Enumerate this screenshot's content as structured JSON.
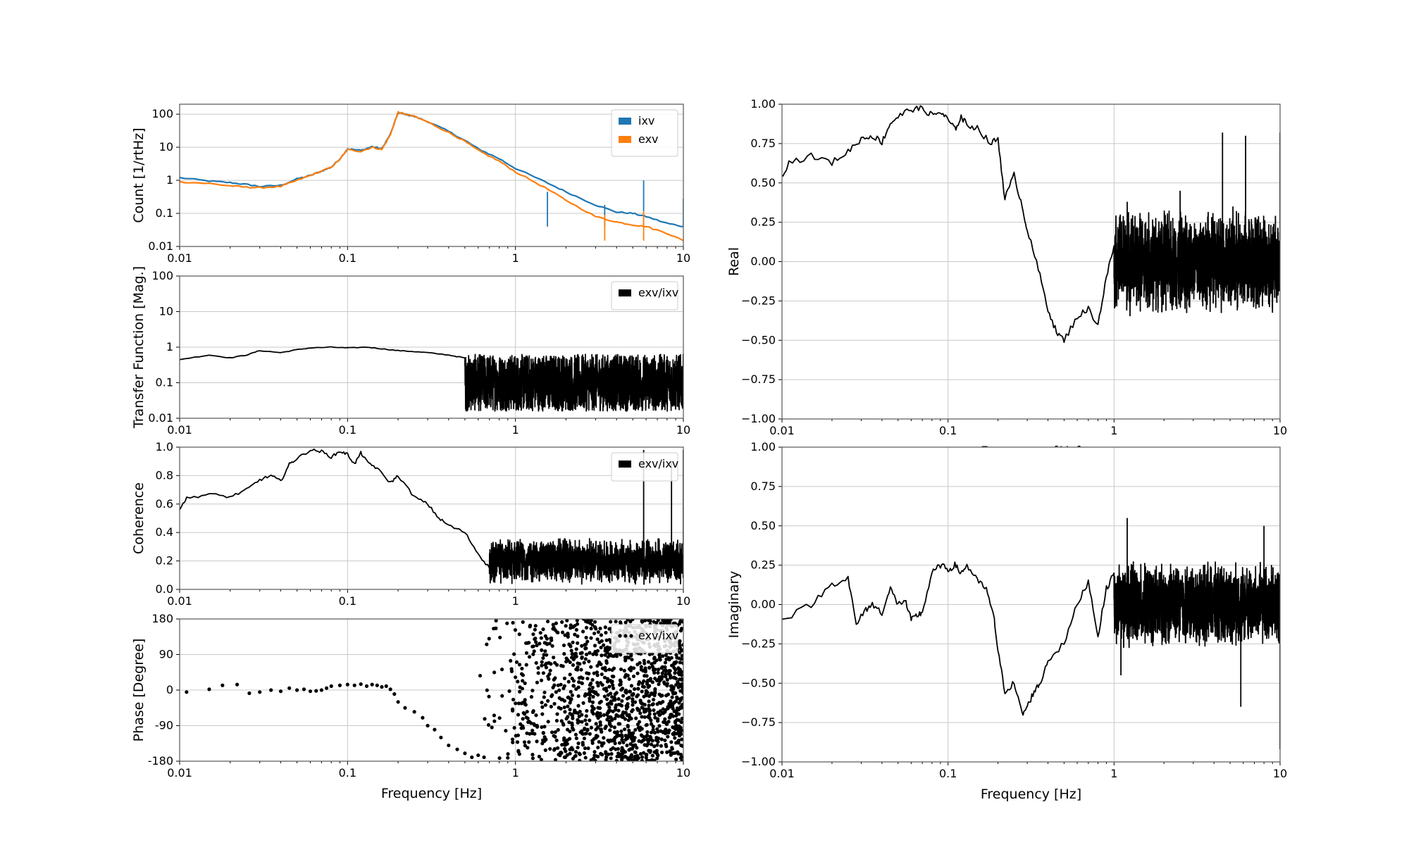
{
  "chart_data": [
    {
      "id": "asd",
      "type": "line",
      "ylabel": "Count [1/rtHz]",
      "xlabel": "",
      "xscale": "log",
      "yscale": "log",
      "xlim": [
        0.01,
        10
      ],
      "ylim": [
        0.01,
        200
      ],
      "xticks": [
        "0.01",
        "0.1",
        "1",
        "10"
      ],
      "yticks": [
        "0.01",
        "0.1",
        "1",
        "10",
        "100"
      ],
      "grid": true,
      "legend_position": "top-right",
      "series": [
        {
          "name": "ixv",
          "color": "#1f77b4",
          "x": [
            0.01,
            0.015,
            0.02,
            0.025,
            0.03,
            0.04,
            0.05,
            0.06,
            0.07,
            0.08,
            0.09,
            0.1,
            0.12,
            0.14,
            0.16,
            0.18,
            0.2,
            0.22,
            0.25,
            0.3,
            0.4,
            0.5,
            0.6,
            0.8,
            1.0,
            1.5,
            2.0,
            3.0,
            4.0,
            5.0,
            6.0,
            8.0,
            10.0
          ],
          "y": [
            1.2,
            0.95,
            0.85,
            0.75,
            0.65,
            0.7,
            1.1,
            1.4,
            1.9,
            2.5,
            4.5,
            9.0,
            8.0,
            10.5,
            9.0,
            25,
            110,
            100,
            85,
            60,
            30,
            16,
            9,
            4.5,
            2.3,
            0.9,
            0.45,
            0.18,
            0.11,
            0.1,
            0.08,
            0.05,
            0.04
          ],
          "spikes": [
            {
              "x": 1.55,
              "y": 0.45
            },
            {
              "x": 3.4,
              "y": 0.18
            },
            {
              "x": 5.8,
              "y": 1.0
            },
            {
              "x": 10.0,
              "y": 0.28
            }
          ]
        },
        {
          "name": "exv",
          "color": "#ff7f0e",
          "x": [
            0.01,
            0.015,
            0.02,
            0.025,
            0.03,
            0.04,
            0.05,
            0.06,
            0.07,
            0.08,
            0.09,
            0.1,
            0.12,
            0.14,
            0.16,
            0.18,
            0.2,
            0.22,
            0.25,
            0.3,
            0.4,
            0.5,
            0.6,
            0.8,
            1.0,
            1.5,
            2.0,
            3.0,
            4.0,
            5.0,
            6.0,
            8.0,
            10.0
          ],
          "y": [
            0.9,
            0.8,
            0.68,
            0.62,
            0.6,
            0.65,
            1.0,
            1.4,
            1.9,
            2.5,
            4.3,
            8.5,
            7.5,
            10.0,
            8.5,
            24,
            115,
            100,
            85,
            58,
            28,
            15,
            8,
            3.8,
            1.8,
            0.6,
            0.25,
            0.08,
            0.055,
            0.045,
            0.04,
            0.025,
            0.015
          ],
          "spikes": [
            {
              "x": 5.8,
              "y": 0.12
            },
            {
              "x": 3.4,
              "y": 0.09
            }
          ]
        }
      ]
    },
    {
      "id": "tf_mag",
      "type": "line",
      "ylabel": "Transfer Function [Mag.]",
      "xlabel": "",
      "xscale": "log",
      "yscale": "log",
      "xlim": [
        0.01,
        10
      ],
      "ylim": [
        0.01,
        100
      ],
      "xticks": [
        "0.01",
        "0.1",
        "1",
        "10"
      ],
      "yticks": [
        "0.01",
        "0.1",
        "1",
        "10",
        "100"
      ],
      "grid": true,
      "legend_position": "top-right",
      "series": [
        {
          "name": "exv/ixv",
          "color": "#000000",
          "x": [
            0.01,
            0.015,
            0.02,
            0.025,
            0.03,
            0.04,
            0.05,
            0.06,
            0.08,
            0.1,
            0.13,
            0.16,
            0.2,
            0.25,
            0.3,
            0.4,
            0.5
          ],
          "y": [
            0.45,
            0.6,
            0.5,
            0.6,
            0.8,
            0.7,
            0.85,
            0.95,
            1.0,
            0.95,
            1.0,
            0.9,
            0.8,
            0.75,
            0.7,
            0.6,
            0.5
          ],
          "noise": {
            "x_start": 0.5,
            "x_end": 10,
            "median": 0.1,
            "spread_decades": 0.8
          }
        }
      ]
    },
    {
      "id": "coherence",
      "type": "line",
      "ylabel": "Coherence",
      "xlabel": "",
      "xscale": "log",
      "yscale": "linear",
      "xlim": [
        0.01,
        10
      ],
      "ylim": [
        0.0,
        1.0
      ],
      "xticks": [
        "0.01",
        "0.1",
        "1",
        "10"
      ],
      "yticks": [
        "0.0",
        "0.2",
        "0.4",
        "0.6",
        "0.8",
        "1.0"
      ],
      "grid": true,
      "legend_position": "top-right",
      "series": [
        {
          "name": "exv/ixv",
          "color": "#000000",
          "x": [
            0.01,
            0.011,
            0.015,
            0.02,
            0.025,
            0.03,
            0.035,
            0.04,
            0.045,
            0.05,
            0.06,
            0.07,
            0.08,
            0.09,
            0.1,
            0.11,
            0.12,
            0.13,
            0.15,
            0.18,
            0.2,
            0.25,
            0.3,
            0.35,
            0.4,
            0.5,
            0.6,
            0.7
          ],
          "y": [
            0.57,
            0.64,
            0.67,
            0.65,
            0.7,
            0.77,
            0.8,
            0.76,
            0.88,
            0.92,
            0.98,
            0.97,
            0.93,
            0.97,
            0.95,
            0.88,
            0.96,
            0.9,
            0.85,
            0.75,
            0.8,
            0.65,
            0.6,
            0.5,
            0.45,
            0.4,
            0.25,
            0.15
          ],
          "noise": {
            "x_start": 0.7,
            "x_end": 10,
            "center": 0.2,
            "spread": 0.12
          },
          "spikes": [
            {
              "x": 5.8,
              "y": 0.98
            },
            {
              "x": 8.5,
              "y": 0.9
            },
            {
              "x": 10.0,
              "y": 0.98
            }
          ]
        }
      ]
    },
    {
      "id": "phase",
      "type": "scatter",
      "ylabel": "Phase [Degree]",
      "xlabel": "Frequency [Hz]",
      "xscale": "log",
      "yscale": "linear",
      "xlim": [
        0.01,
        10
      ],
      "ylim": [
        -180,
        180
      ],
      "xticks": [
        "0.01",
        "0.1",
        "1",
        "10"
      ],
      "yticks": [
        "-180",
        "-90",
        "0",
        "90",
        "180"
      ],
      "grid": true,
      "legend_position": "top-right",
      "series": [
        {
          "name": "exv/ixv",
          "color": "#000000",
          "x": [
            0.011,
            0.015,
            0.018,
            0.022,
            0.026,
            0.03,
            0.035,
            0.04,
            0.045,
            0.05,
            0.055,
            0.06,
            0.065,
            0.07,
            0.075,
            0.08,
            0.09,
            0.1,
            0.11,
            0.12,
            0.13,
            0.14,
            0.15,
            0.16,
            0.17,
            0.18,
            0.19,
            0.2,
            0.22,
            0.25,
            0.28,
            0.3,
            0.33,
            0.36,
            0.4,
            0.45,
            0.5,
            0.55,
            0.6,
            0.65
          ],
          "y": [
            -5,
            2,
            12,
            14,
            -8,
            -5,
            0,
            -3,
            5,
            0,
            2,
            -3,
            -2,
            0,
            5,
            10,
            12,
            14,
            12,
            15,
            10,
            14,
            12,
            8,
            10,
            2,
            -10,
            -30,
            -45,
            -55,
            -70,
            -90,
            -100,
            -120,
            -140,
            -150,
            -160,
            -170,
            -165,
            -170
          ],
          "scatter_region": {
            "x_start": 0.6,
            "x_end": 10,
            "y_min": -180,
            "y_max": 180
          }
        }
      ]
    },
    {
      "id": "real",
      "type": "line",
      "ylabel": "Real",
      "xlabel": "Frequency [Hz]",
      "xscale": "log",
      "yscale": "linear",
      "xlim": [
        0.01,
        10
      ],
      "ylim": [
        -1.0,
        1.0
      ],
      "xticks": [
        "0.01",
        "0.1",
        "1",
        "10"
      ],
      "yticks": [
        "−1.00",
        "−0.75",
        "−0.50",
        "−0.25",
        "0.00",
        "0.25",
        "0.50",
        "0.75",
        "1.00"
      ],
      "grid": true,
      "series": [
        {
          "name": "",
          "color": "#000000",
          "x": [
            0.01,
            0.011,
            0.015,
            0.02,
            0.025,
            0.03,
            0.035,
            0.04,
            0.045,
            0.05,
            0.06,
            0.07,
            0.08,
            0.09,
            0.1,
            0.11,
            0.12,
            0.13,
            0.15,
            0.18,
            0.2,
            0.22,
            0.25,
            0.28,
            0.3,
            0.35,
            0.4,
            0.45,
            0.5,
            0.6,
            0.7,
            0.8,
            0.9,
            1.0
          ],
          "y": [
            0.55,
            0.63,
            0.67,
            0.63,
            0.7,
            0.78,
            0.8,
            0.76,
            0.88,
            0.92,
            0.97,
            0.97,
            0.93,
            0.95,
            0.9,
            0.84,
            0.92,
            0.87,
            0.85,
            0.75,
            0.78,
            0.4,
            0.55,
            0.35,
            0.2,
            -0.05,
            -0.3,
            -0.45,
            -0.5,
            -0.35,
            -0.3,
            -0.4,
            -0.1,
            0.1
          ],
          "noise": {
            "x_start": 1.0,
            "x_end": 10,
            "center": 0.0,
            "spread": 0.25
          },
          "spikes": [
            {
              "x": 4.5,
              "y": 0.82
            },
            {
              "x": 6.2,
              "y": 0.8
            },
            {
              "x": 10.0,
              "y": 0.82
            },
            {
              "x": 1.2,
              "y": 0.38
            },
            {
              "x": 2.5,
              "y": 0.45
            }
          ]
        }
      ]
    },
    {
      "id": "imaginary",
      "type": "line",
      "ylabel": "Imaginary",
      "xlabel": "Frequency [Hz]",
      "xscale": "log",
      "yscale": "linear",
      "xlim": [
        0.01,
        10
      ],
      "ylim": [
        -1.0,
        1.0
      ],
      "xticks": [
        "0.01",
        "0.1",
        "1",
        "10"
      ],
      "yticks": [
        "−1.00",
        "−0.75",
        "−0.50",
        "−0.25",
        "0.00",
        "0.25",
        "0.50",
        "0.75",
        "1.00"
      ],
      "grid": true,
      "series": [
        {
          "name": "",
          "color": "#000000",
          "x": [
            0.01,
            0.015,
            0.02,
            0.025,
            0.028,
            0.032,
            0.035,
            0.04,
            0.045,
            0.05,
            0.055,
            0.06,
            0.065,
            0.07,
            0.08,
            0.09,
            0.1,
            0.11,
            0.12,
            0.13,
            0.15,
            0.17,
            0.19,
            0.2,
            0.22,
            0.25,
            0.28,
            0.3,
            0.33,
            0.36,
            0.4,
            0.5,
            0.6,
            0.7,
            0.8,
            0.9,
            1.0
          ],
          "y": [
            -0.1,
            0.0,
            0.13,
            0.17,
            -0.13,
            -0.03,
            0.0,
            -0.05,
            0.1,
            0.0,
            0.03,
            -0.1,
            -0.07,
            -0.05,
            0.2,
            0.25,
            0.22,
            0.25,
            0.2,
            0.25,
            0.15,
            0.1,
            -0.1,
            -0.3,
            -0.55,
            -0.5,
            -0.7,
            -0.65,
            -0.55,
            -0.5,
            -0.35,
            -0.25,
            0.0,
            0.15,
            -0.2,
            0.1,
            0.2
          ],
          "noise": {
            "x_start": 1.0,
            "x_end": 10,
            "center": 0.0,
            "spread": 0.2
          },
          "spikes": [
            {
              "x": 1.2,
              "y": 0.55
            },
            {
              "x": 5.8,
              "y": -0.65
            },
            {
              "x": 8.0,
              "y": 0.5
            },
            {
              "x": 10.0,
              "y": -0.92
            },
            {
              "x": 1.1,
              "y": -0.45
            }
          ]
        }
      ]
    }
  ]
}
